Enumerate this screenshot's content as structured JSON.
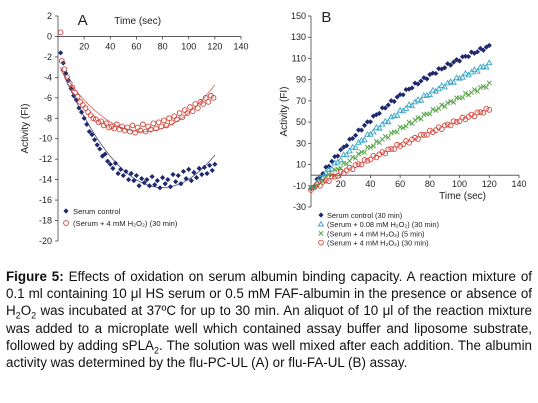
{
  "chart_data": [
    {
      "type": "scatter",
      "panel_label": "A",
      "xlabel": "Time (sec)",
      "ylabel": "Activity (FI)",
      "xlim": [
        0,
        140
      ],
      "ylim": [
        -20,
        2
      ],
      "x_ticks": [
        20,
        40,
        60,
        80,
        100,
        120,
        140
      ],
      "y_ticks": [
        2,
        0,
        -2,
        -4,
        -6,
        -8,
        -10,
        -12,
        -14,
        -16,
        -18,
        -20
      ],
      "legend_position": "bottom-left",
      "grid": false,
      "series": [
        {
          "name": "Serum control",
          "marker": "filled-diamond",
          "color": "#1f2a6e",
          "fit_curve": true,
          "points": [
            [
              2,
              -1.6
            ],
            [
              4,
              -2.6
            ],
            [
              6,
              -3.6
            ],
            [
              8,
              -4.3
            ],
            [
              10,
              -5.1
            ],
            [
              12,
              -5.8
            ],
            [
              14,
              -6.2
            ],
            [
              16,
              -7.0
            ],
            [
              18,
              -7.4
            ],
            [
              20,
              -8.0
            ],
            [
              22,
              -8.6
            ],
            [
              24,
              -9.3
            ],
            [
              26,
              -9.6
            ],
            [
              28,
              -10.1
            ],
            [
              30,
              -10.6
            ],
            [
              32,
              -11.0
            ],
            [
              34,
              -11.7
            ],
            [
              36,
              -11.5
            ],
            [
              38,
              -12.2
            ],
            [
              40,
              -12.5
            ],
            [
              42,
              -12.9
            ],
            [
              44,
              -12.4
            ],
            [
              46,
              -13.4
            ],
            [
              48,
              -13.0
            ],
            [
              50,
              -13.6
            ],
            [
              52,
              -13.2
            ],
            [
              54,
              -14.0
            ],
            [
              56,
              -13.4
            ],
            [
              58,
              -14.1
            ],
            [
              60,
              -13.6
            ],
            [
              62,
              -14.6
            ],
            [
              64,
              -13.9
            ],
            [
              66,
              -14.3
            ],
            [
              68,
              -14.0
            ],
            [
              70,
              -14.6
            ],
            [
              72,
              -13.7
            ],
            [
              74,
              -14.5
            ],
            [
              76,
              -14.1
            ],
            [
              78,
              -14.8
            ],
            [
              80,
              -13.8
            ],
            [
              82,
              -14.4
            ],
            [
              84,
              -14.0
            ],
            [
              86,
              -14.7
            ],
            [
              88,
              -13.5
            ],
            [
              90,
              -14.2
            ],
            [
              92,
              -13.6
            ],
            [
              94,
              -14.4
            ],
            [
              96,
              -13.2
            ],
            [
              98,
              -13.9
            ],
            [
              100,
              -13.0
            ],
            [
              102,
              -14.1
            ],
            [
              104,
              -13.3
            ],
            [
              106,
              -13.8
            ],
            [
              108,
              -12.9
            ],
            [
              110,
              -13.5
            ],
            [
              112,
              -12.8
            ],
            [
              114,
              -13.4
            ],
            [
              116,
              -12.6
            ],
            [
              118,
              -13.1
            ],
            [
              120,
              -12.5
            ]
          ]
        },
        {
          "name": "(Serum + 4 mM H₂O₂) (30 min)",
          "marker": "open-circle",
          "color": "#d0443a",
          "fit_curve": true,
          "points": [
            [
              2,
              0.4
            ],
            [
              3,
              -2.4
            ],
            [
              5,
              -3.2
            ],
            [
              7,
              -4.0
            ],
            [
              9,
              -4.6
            ],
            [
              11,
              -5.0
            ],
            [
              13,
              -5.5
            ],
            [
              15,
              -5.9
            ],
            [
              17,
              -6.4
            ],
            [
              19,
              -6.7
            ],
            [
              21,
              -7.0
            ],
            [
              23,
              -7.4
            ],
            [
              25,
              -7.7
            ],
            [
              27,
              -8.0
            ],
            [
              29,
              -8.1
            ],
            [
              31,
              -8.4
            ],
            [
              33,
              -8.3
            ],
            [
              35,
              -8.7
            ],
            [
              37,
              -8.5
            ],
            [
              39,
              -8.9
            ],
            [
              41,
              -8.8
            ],
            [
              43,
              -9.0
            ],
            [
              45,
              -8.6
            ],
            [
              47,
              -9.1
            ],
            [
              49,
              -8.8
            ],
            [
              51,
              -9.2
            ],
            [
              53,
              -8.9
            ],
            [
              55,
              -9.3
            ],
            [
              57,
              -8.7
            ],
            [
              59,
              -9.4
            ],
            [
              61,
              -8.9
            ],
            [
              63,
              -9.2
            ],
            [
              65,
              -8.6
            ],
            [
              67,
              -9.3
            ],
            [
              69,
              -8.8
            ],
            [
              71,
              -9.1
            ],
            [
              73,
              -8.5
            ],
            [
              75,
              -9.0
            ],
            [
              77,
              -8.4
            ],
            [
              79,
              -8.8
            ],
            [
              81,
              -8.2
            ],
            [
              83,
              -8.7
            ],
            [
              85,
              -8.0
            ],
            [
              87,
              -8.4
            ],
            [
              89,
              -7.8
            ],
            [
              91,
              -8.1
            ],
            [
              93,
              -7.5
            ],
            [
              95,
              -7.9
            ],
            [
              97,
              -7.2
            ],
            [
              99,
              -7.5
            ],
            [
              101,
              -6.9
            ],
            [
              103,
              -7.3
            ],
            [
              105,
              -6.6
            ],
            [
              107,
              -7.0
            ],
            [
              109,
              -6.4
            ],
            [
              111,
              -6.6
            ],
            [
              113,
              -6.0
            ],
            [
              115,
              -6.4
            ],
            [
              117,
              -5.8
            ],
            [
              119,
              -6.0
            ]
          ]
        }
      ]
    },
    {
      "type": "scatter",
      "panel_label": "B",
      "xlabel": "Time (sec)",
      "ylabel": "Activity (FI)",
      "xlim": [
        0,
        140
      ],
      "ylim": [
        -30,
        150
      ],
      "x_ticks": [
        20,
        40,
        60,
        80,
        100,
        120,
        140
      ],
      "y_ticks": [
        150,
        130,
        110,
        90,
        70,
        50,
        30,
        10,
        -10,
        -30
      ],
      "legend_position": "bottom",
      "grid": false,
      "series": [
        {
          "name": "Serum control (30 min)",
          "marker": "filled-diamond",
          "color": "#1f2a6e",
          "model": {
            "plateau": 185,
            "rate": 0.0108,
            "offset": -13
          },
          "n_points": 61
        },
        {
          "name": "(Serum + 0.08 mM H₂O₂) (30 min)",
          "marker": "open-triangle",
          "color": "#3aa6c8",
          "model": {
            "plateau": 190,
            "rate": 0.008,
            "offset": -13
          },
          "n_points": 61
        },
        {
          "name": "(Serum + 4 mM H₂O₂) (5 min)",
          "marker": "x",
          "color": "#5aa64a",
          "model": {
            "plateau": 215,
            "rate": 0.0051,
            "offset": -13
          },
          "n_points": 61
        },
        {
          "name": "(Serum + 4 mM H₂O₂) (30 min)",
          "marker": "open-circle",
          "color": "#d0443a",
          "model": {
            "plateau": 230,
            "rate": 0.0033,
            "offset": -13
          },
          "n_points": 61
        }
      ]
    }
  ],
  "caption": {
    "label": "Figure 5:",
    "text_1": " Effects of oxidation on serum albumin binding capacity. A reaction mixture of 0.1 ml containing 10 μl HS serum or 0.5 mM FAF-albumin in the presence or absence of H",
    "sub_1": "2",
    "text_2": "O",
    "sub_2": "2",
    "text_3": " was incubated at 37ºC for up to 30 min. An aliquot of 10 μl of the reaction mixture was added to a microplate well which contained assay buffer and liposome substrate, followed by adding sPLA",
    "sub_3": "2",
    "text_4": ". The solution was well mixed after each addition. The albumin activity was determined by the flu-PC-UL (A) or flu-FA-UL (B) assay."
  }
}
